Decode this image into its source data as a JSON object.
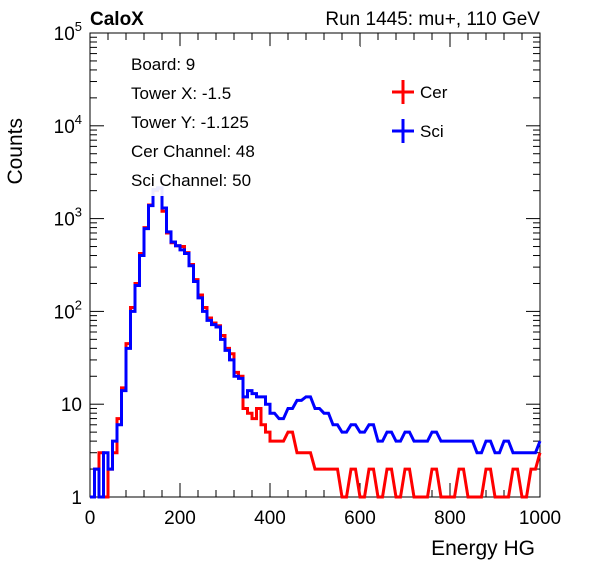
{
  "header": {
    "left_title": "CaloX",
    "right_title": "Run 1445: mu+, 110 GeV"
  },
  "info_box": {
    "lines": [
      "Board: 9",
      "Tower X: -1.5",
      "Tower Y: -1.125",
      "Cer Channel: 48",
      "Sci Channel: 50"
    ]
  },
  "colors": {
    "Cer": "#ff0000",
    "Sci": "#0000ff",
    "axis": "#000000"
  },
  "chart_data": {
    "type": "line",
    "title": "",
    "xlabel": "Energy HG",
    "ylabel": "Counts",
    "xlim": [
      0,
      1000
    ],
    "ylim": [
      1,
      100000
    ],
    "y_scale": "log",
    "x_ticks": [
      {
        "value": 0,
        "label": "0"
      },
      {
        "value": 200,
        "label": "200"
      },
      {
        "value": 400,
        "label": "400"
      },
      {
        "value": 600,
        "label": "600"
      },
      {
        "value": 800,
        "label": "800"
      },
      {
        "value": 1000,
        "label": "1000"
      }
    ],
    "y_ticks": [
      {
        "value": 1,
        "base": "1",
        "exp": ""
      },
      {
        "value": 10,
        "base": "10",
        "exp": ""
      },
      {
        "value": 100,
        "base": "10",
        "exp": "2"
      },
      {
        "value": 1000,
        "base": "10",
        "exp": "3"
      },
      {
        "value": 10000,
        "base": "10",
        "exp": "4"
      },
      {
        "value": 100000,
        "base": "10",
        "exp": "5"
      }
    ],
    "legend": {
      "position": "top-right",
      "entries": [
        "Cer",
        "Sci"
      ]
    },
    "grid": false,
    "series": [
      {
        "name": "Cer",
        "color": "#ff0000",
        "x": [
          0,
          10,
          20,
          30,
          40,
          50,
          60,
          70,
          80,
          90,
          100,
          110,
          120,
          130,
          140,
          150,
          160,
          170,
          180,
          190,
          200,
          210,
          220,
          230,
          240,
          250,
          260,
          270,
          280,
          290,
          300,
          310,
          320,
          330,
          340,
          350,
          360,
          370,
          380,
          390,
          400,
          420,
          440,
          460,
          480,
          500,
          520,
          540,
          560,
          580,
          600,
          620,
          640,
          660,
          680,
          700,
          720,
          740,
          760,
          780,
          800,
          820,
          840,
          860,
          880,
          900,
          920,
          940,
          960,
          980,
          1000
        ],
        "y": [
          1,
          2,
          3,
          1,
          2,
          3,
          7,
          15,
          45,
          110,
          200,
          420,
          800,
          1400,
          2000,
          2100,
          1200,
          700,
          550,
          510,
          500,
          430,
          320,
          220,
          150,
          110,
          85,
          75,
          70,
          55,
          40,
          35,
          22,
          20,
          9,
          8,
          7,
          9,
          6,
          5,
          4,
          4,
          5,
          3,
          3,
          2,
          2,
          2,
          1,
          2,
          1,
          2,
          1,
          2,
          1,
          2,
          1,
          1,
          2,
          1,
          1,
          2,
          1,
          1,
          2,
          1,
          1,
          2,
          1,
          2,
          3
        ]
      },
      {
        "name": "Sci",
        "color": "#0000ff",
        "x": [
          0,
          10,
          20,
          30,
          40,
          50,
          60,
          70,
          80,
          90,
          100,
          110,
          120,
          130,
          140,
          150,
          160,
          170,
          180,
          190,
          200,
          210,
          220,
          230,
          240,
          250,
          260,
          270,
          280,
          290,
          300,
          310,
          320,
          330,
          340,
          350,
          360,
          370,
          380,
          390,
          400,
          420,
          440,
          460,
          480,
          500,
          520,
          540,
          560,
          580,
          600,
          620,
          640,
          660,
          680,
          700,
          720,
          740,
          760,
          780,
          800,
          820,
          840,
          860,
          880,
          900,
          920,
          940,
          960,
          980,
          1000
        ],
        "y": [
          1,
          2,
          1,
          3,
          2,
          4,
          6,
          14,
          40,
          100,
          190,
          400,
          780,
          1380,
          2050,
          2150,
          1300,
          720,
          560,
          510,
          460,
          420,
          310,
          210,
          140,
          100,
          80,
          72,
          68,
          50,
          38,
          30,
          20,
          19,
          12,
          14,
          13,
          12,
          12,
          10,
          8,
          7,
          9,
          11,
          12,
          9,
          8,
          6,
          5,
          6,
          5,
          6,
          4,
          5,
          4,
          5,
          4,
          4,
          5,
          4,
          4,
          4,
          4,
          3,
          4,
          3,
          4,
          3,
          3,
          3,
          4
        ]
      }
    ]
  }
}
